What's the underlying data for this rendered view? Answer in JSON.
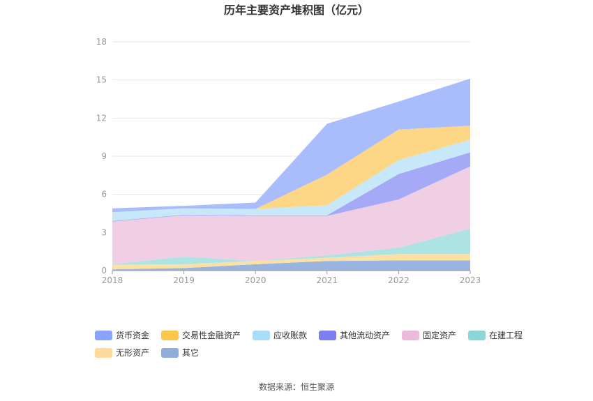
{
  "chart_data": {
    "type": "area",
    "stacked": true,
    "title": "历年主要资产堆积图（亿元）",
    "categories": [
      "2018",
      "2019",
      "2020",
      "2021",
      "2022",
      "2023"
    ],
    "y_ticks": [
      "0",
      "3",
      "6",
      "9",
      "12",
      "15",
      "18"
    ],
    "ylim": [
      0,
      18
    ],
    "grid": true,
    "legend_position": "bottom",
    "series": [
      {
        "name": "其它",
        "color": "#9ab4e0",
        "values": [
          0.1,
          0.2,
          0.5,
          0.75,
          0.8,
          0.8
        ]
      },
      {
        "name": "无形资产",
        "color": "#fde0a3",
        "values": [
          0.35,
          0.3,
          0.25,
          0.25,
          0.5,
          0.5
        ]
      },
      {
        "name": "在建工程",
        "color": "#aee3e3",
        "values": [
          0.05,
          0.6,
          0.0,
          0.2,
          0.5,
          2.0
        ]
      },
      {
        "name": "固定资产",
        "color": "#f0cfe4",
        "values": [
          3.35,
          3.25,
          3.55,
          3.1,
          3.8,
          4.9
        ]
      },
      {
        "name": "其他流动资产",
        "color": "#a5a9f6",
        "values": [
          0.05,
          0.05,
          0.05,
          0.05,
          2.0,
          1.1
        ]
      },
      {
        "name": "应收账款",
        "color": "#c6e8f9",
        "values": [
          0.7,
          0.5,
          0.5,
          0.8,
          1.1,
          1.0
        ]
      },
      {
        "name": "交易性金融资产",
        "color": "#fdd785",
        "values": [
          0.0,
          0.0,
          0.0,
          2.4,
          2.4,
          1.1
        ]
      },
      {
        "name": "货币资金",
        "color": "#a9bcfb",
        "values": [
          0.3,
          0.2,
          0.5,
          4.0,
          2.2,
          3.7
        ]
      }
    ]
  },
  "legend": [
    {
      "label": "货币资金",
      "color": "#89a4fa"
    },
    {
      "label": "交易性金融资产",
      "color": "#fcc64b"
    },
    {
      "label": "应收账款",
      "color": "#abddf8"
    },
    {
      "label": "其他流动资产",
      "color": "#7c80ef"
    },
    {
      "label": "固定资产",
      "color": "#ebbcd9"
    },
    {
      "label": "在建工程",
      "color": "#8bd6d6"
    },
    {
      "label": "无形资产",
      "color": "#fdd99c"
    },
    {
      "label": "其它",
      "color": "#91add9"
    }
  ],
  "source": "数据来源：恒生聚源"
}
